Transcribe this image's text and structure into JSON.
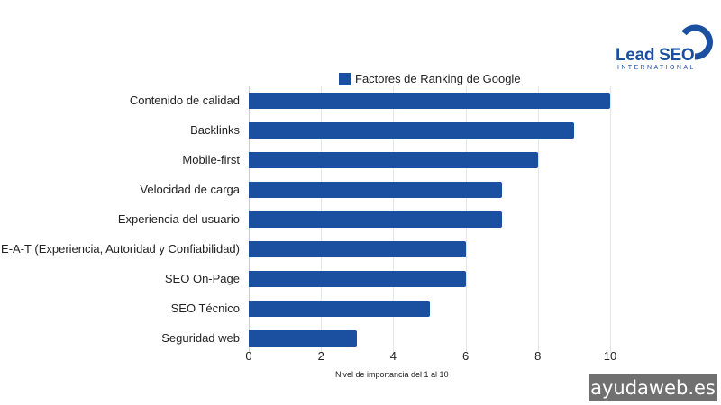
{
  "logo": {
    "name": "Lead SEO",
    "subtitle": "INTERNATIONAL"
  },
  "watermark": "ayudaweb.es",
  "colors": {
    "bar": "#1b4fa0",
    "grid": "#e3e6ea",
    "logo": "#1b4fa0",
    "watermark_bg": "#707070"
  },
  "chart_data": {
    "type": "bar",
    "orientation": "horizontal",
    "title": "",
    "categories": [
      "Contenido de calidad",
      "Backlinks",
      "Mobile-first",
      "Velocidad de carga",
      "Experiencia del usuario",
      "E-A-T (Experiencia, Autoridad y Confiabilidad)",
      "SEO On-Page",
      "SEO Técnico",
      "Seguridad web"
    ],
    "series": [
      {
        "name": "Factores de Ranking de Google",
        "values": [
          10,
          9,
          8,
          7,
          7,
          6,
          6,
          5,
          3
        ]
      }
    ],
    "xlabel": "Nivel de importancia del 1 al 10",
    "ylabel": "",
    "xlim": [
      0,
      10
    ],
    "xticks": [
      "0",
      "2",
      "4",
      "6",
      "8",
      "10"
    ],
    "grid": true,
    "legend_position": "top"
  }
}
